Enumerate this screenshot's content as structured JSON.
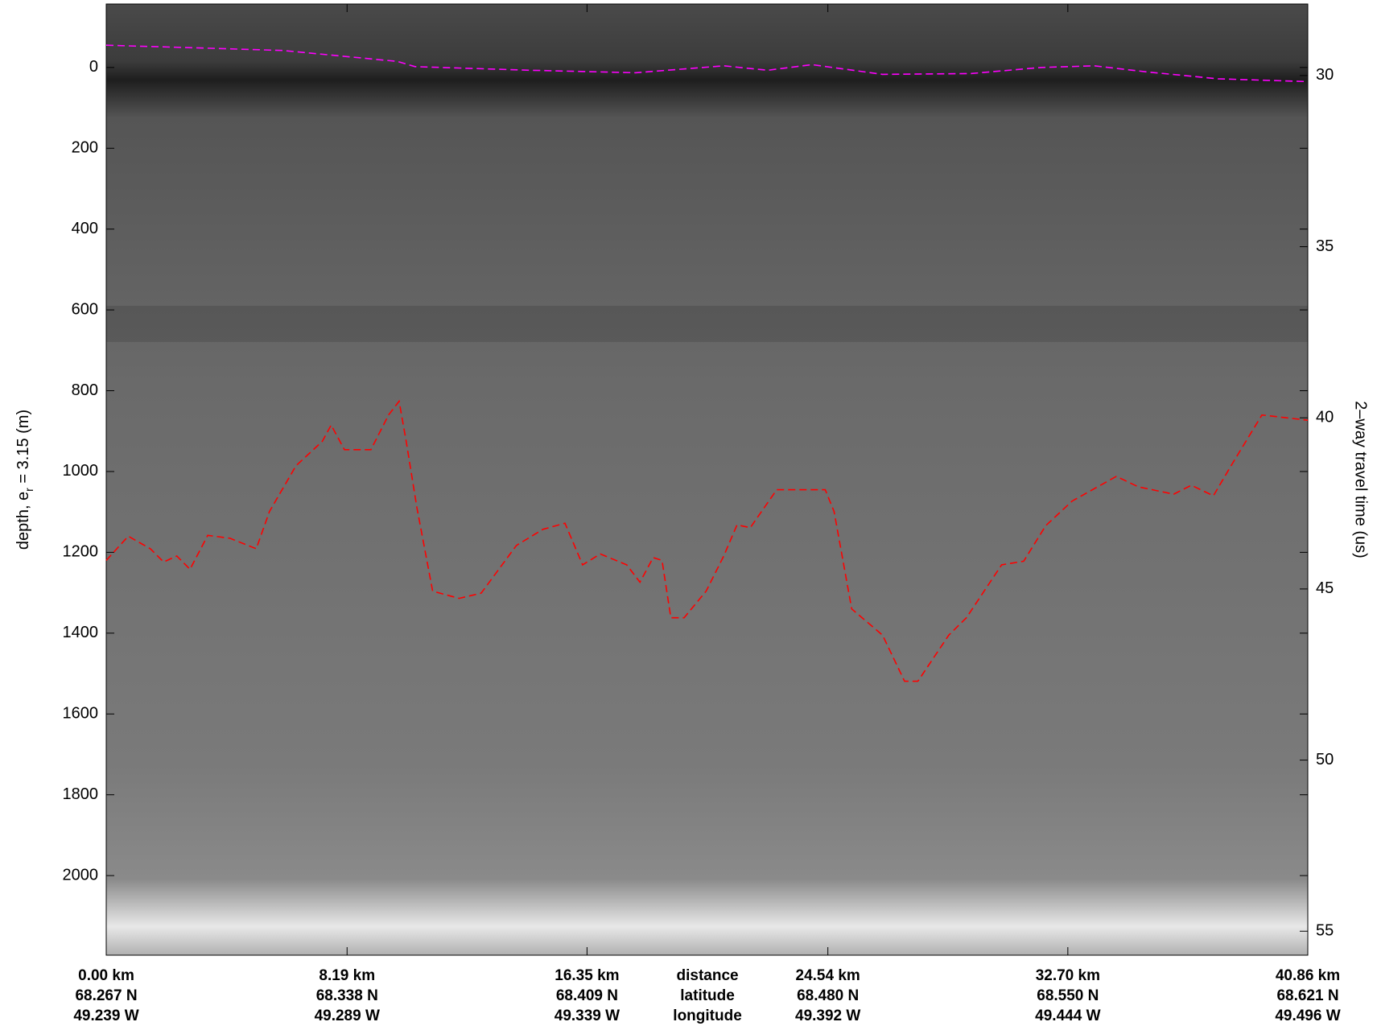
{
  "chart_data": {
    "type": "line",
    "ylabel": "depth, e",
    "ylabel_subscript": "r",
    "ylabel_suffix": "= 3.15 (m)",
    "y2label": "2–way travel time (us)",
    "xlim": [
      0,
      40.86
    ],
    "ylim": [
      -157,
      2197
    ],
    "y_reversed": true,
    "yticks": [
      0,
      200,
      400,
      600,
      800,
      1000,
      1200,
      1400,
      1600,
      1800,
      2000
    ],
    "y2lim": [
      27.91,
      55.7
    ],
    "y2_reversed": true,
    "y2ticks": [
      30,
      35,
      40,
      45,
      50,
      55
    ],
    "xticks": [
      {
        "value": 0,
        "label": "0.00 km"
      },
      {
        "value": 8.19,
        "label": "8.19 km"
      },
      {
        "value": 16.35,
        "label": "16.35 km"
      },
      {
        "value": 24.54,
        "label": "24.54 km"
      },
      {
        "value": 32.7,
        "label": "32.70 km"
      },
      {
        "value": 40.86,
        "label": "40.86 km"
      }
    ],
    "latitudes": [
      "68.267 N",
      "68.338 N",
      "68.409 N",
      "68.480 N",
      "68.550 N",
      "68.621 N"
    ],
    "longitudes": [
      "49.239 W",
      "49.289 W",
      "49.339 W",
      "49.392 W",
      "49.444 W",
      "49.496 W"
    ],
    "row_labels": [
      "distance",
      "latitude",
      "longitude"
    ],
    "line_style": "dashed",
    "series": [
      {
        "color": "#ff00ff",
        "x": [
          0,
          3.3,
          6.0,
          9.9,
          10.5,
          14.4,
          18.0,
          21.0,
          22.5,
          24.0,
          26.4,
          29.4,
          31.8,
          33.6,
          35.4,
          37.8,
          40.86
        ],
        "values": [
          -55,
          -48,
          -42,
          -15,
          -2,
          7,
          13,
          -4,
          7,
          -7,
          17,
          15,
          0,
          -4,
          11,
          28,
          35
        ]
      },
      {
        "color": "#ff0000",
        "x": [
          0,
          0.75,
          1.5,
          1.95,
          2.4,
          2.85,
          3.45,
          4.2,
          5.1,
          5.55,
          6.45,
          7.35,
          7.65,
          8.1,
          9.0,
          9.6,
          9.96,
          10.2,
          10.56,
          11.1,
          12.0,
          12.75,
          13.95,
          14.85,
          15.6,
          16.2,
          16.8,
          17.7,
          18.15,
          18.6,
          18.9,
          19.2,
          19.65,
          20.4,
          21.0,
          21.45,
          21.9,
          22.8,
          24.45,
          24.75,
          25.35,
          26.4,
          27.15,
          27.6,
          28.65,
          29.25,
          30.45,
          31.2,
          31.95,
          32.85,
          34.35,
          35.1,
          36.3,
          36.9,
          37.65,
          38.25,
          39.3,
          40.86
        ],
        "values": [
          1220,
          1160,
          1191,
          1224,
          1209,
          1242,
          1158,
          1165,
          1191,
          1099,
          986,
          925,
          885,
          946,
          946,
          860,
          826,
          925,
          1088,
          1296,
          1314,
          1301,
          1183,
          1143,
          1128,
          1231,
          1204,
          1231,
          1274,
          1213,
          1220,
          1362,
          1362,
          1296,
          1209,
          1132,
          1139,
          1045,
          1045,
          1099,
          1340,
          1405,
          1519,
          1519,
          1405,
          1362,
          1231,
          1222,
          1134,
          1073,
          1012,
          1038,
          1056,
          1034,
          1060,
          986,
          860,
          873
        ]
      }
    ]
  }
}
